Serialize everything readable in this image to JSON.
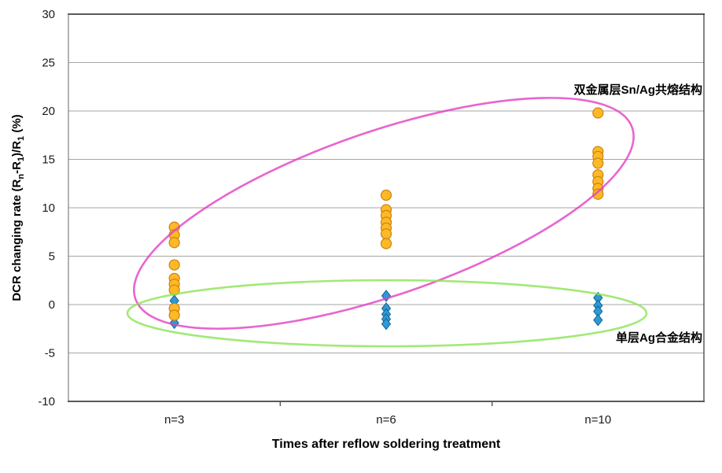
{
  "chart_data": {
    "type": "scatter",
    "title": "",
    "xlabel": "Times after reflow soldering treatment",
    "ylabel": "DCR changing rate (Rn-R1)/R1 (%)",
    "ylabel_segments": [
      {
        "text": "DCR changing rate (R",
        "subscript": false
      },
      {
        "text": "n",
        "subscript": true
      },
      {
        "text": "-R",
        "subscript": false
      },
      {
        "text": "1",
        "subscript": true
      },
      {
        "text": ")/R",
        "subscript": false
      },
      {
        "text": "1",
        "subscript": true
      },
      {
        "text": " (%)",
        "subscript": false
      }
    ],
    "categories": [
      "n=3",
      "n=6",
      "n=10"
    ],
    "ylim": [
      -10,
      30
    ],
    "yticks": [
      30,
      25,
      20,
      15,
      10,
      5,
      0,
      -5,
      -10
    ],
    "grid": "horizontal",
    "legend_position": "none",
    "series": [
      {
        "name": "双金属层Sn/Ag共熔结构",
        "marker": "circle",
        "fill": "#FFB826",
        "stroke": "#C98412",
        "values_by_category": [
          [
            8.0,
            7.2,
            6.4,
            4.1,
            2.7,
            2.1,
            1.5,
            -0.4,
            -1.1
          ],
          [
            11.3,
            9.8,
            9.2,
            8.5,
            7.9,
            7.3,
            6.3
          ],
          [
            19.8,
            15.8,
            15.3,
            14.6,
            13.4,
            12.7,
            12.0,
            11.4
          ]
        ]
      },
      {
        "name": "单层Ag合金结构",
        "marker": "diamond",
        "fill": "#2B9BD7",
        "stroke": "#17618F",
        "values_by_category": [
          [
            0.4,
            -1.2,
            -1.9
          ],
          [
            0.9,
            -0.4,
            -1.0,
            -1.5,
            -2.0
          ],
          [
            0.7,
            -0.1,
            -0.7,
            -1.6
          ]
        ]
      }
    ],
    "annotations": [
      {
        "label": "双金属层Sn/Ag共熔结构",
        "shape": "ellipse",
        "color": "#E23FC3",
        "encircles": "双金属层Sn/Ag共熔结构"
      },
      {
        "label": "单层Ag合金结构",
        "shape": "ellipse",
        "color": "#8BE455",
        "encircles": "单层Ag合金结构"
      }
    ],
    "colors": {
      "grid": "#A6A6A6",
      "frame": "#595959",
      "right_border": "#333333",
      "left_border": "#808080",
      "text": "#1A1A1A"
    }
  }
}
